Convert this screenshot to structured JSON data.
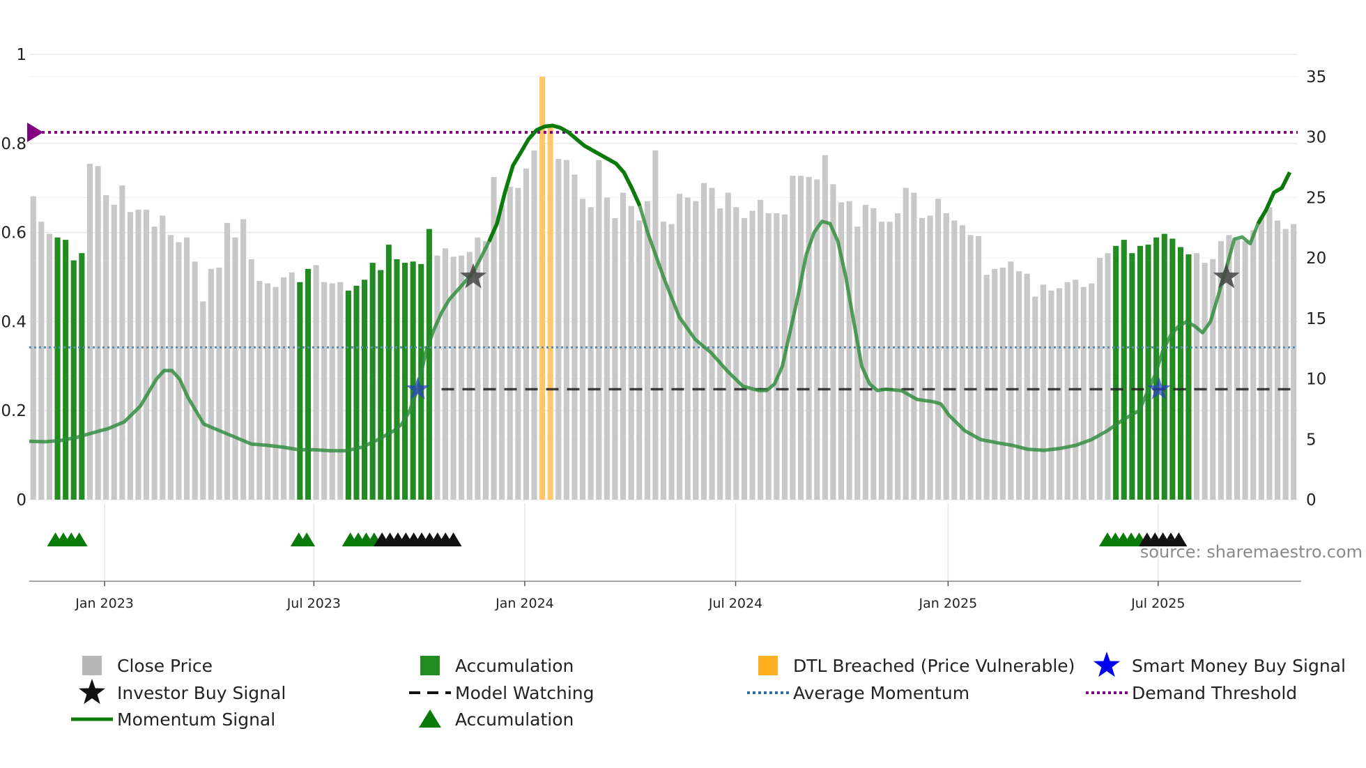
{
  "chart_data": {
    "type": "bar",
    "title": "",
    "source": "source: sharemaestro.com",
    "left_axis": {
      "range": [
        0,
        1
      ],
      "ticks": [
        {
          "v": 0,
          "label": "0"
        },
        {
          "v": 0.2,
          "label": "0.2"
        },
        {
          "v": 0.4,
          "label": "0.4"
        },
        {
          "v": 0.6,
          "label": "0.6"
        },
        {
          "v": 0.8,
          "label": "0.8"
        },
        {
          "v": 1,
          "label": "1"
        }
      ]
    },
    "right_axis": {
      "range": [
        0,
        35
      ],
      "ticks": [
        {
          "v": 0,
          "label": "0"
        },
        {
          "v": 5,
          "label": "5"
        },
        {
          "v": 10,
          "label": "10"
        },
        {
          "v": 15,
          "label": "15"
        },
        {
          "v": 20,
          "label": "20"
        },
        {
          "v": 25,
          "label": "25"
        },
        {
          "v": 30,
          "label": "30"
        },
        {
          "v": 35,
          "label": "35"
        }
      ]
    },
    "x_axis": {
      "range": [
        0,
        160
      ],
      "ticks": [
        {
          "v": 9.5,
          "label": "Jan 2023"
        },
        {
          "v": 35.9,
          "label": "Jul 2023"
        },
        {
          "v": 62.5,
          "label": "Jan 2024"
        },
        {
          "v": 89.1,
          "label": "Jul 2024"
        },
        {
          "v": 115.9,
          "label": "Jan 2025"
        },
        {
          "v": 142.4,
          "label": "Jul 2025"
        }
      ]
    },
    "close_price_weekly": [
      25.1,
      23.0,
      22.0,
      21.7,
      21.5,
      19.8,
      20.4,
      27.8,
      27.6,
      25.2,
      24.4,
      26.0,
      23.8,
      24.0,
      24.0,
      22.6,
      23.5,
      21.9,
      21.3,
      21.7,
      19.7,
      16.4,
      19.1,
      19.2,
      22.9,
      21.7,
      23.2,
      19.9,
      18.1,
      17.9,
      17.6,
      18.4,
      18.8,
      18.0,
      19.1,
      19.4,
      18.0,
      17.9,
      18.0,
      17.3,
      17.7,
      18.2,
      19.6,
      19.0,
      21.1,
      19.9,
      19.6,
      19.7,
      19.5,
      22.4,
      20.2,
      20.8,
      20.1,
      20.2,
      20.5,
      21.7,
      21.4,
      26.7,
      24.4,
      25.9,
      25.8,
      27.4,
      28.9,
      35.0,
      31.0,
      28.2,
      28.1,
      26.9,
      24.9,
      24.2,
      28.1,
      25.0,
      23.3,
      25.4,
      24.3,
      23.1,
      24.7,
      28.9,
      23.0,
      22.8,
      25.3,
      25.0,
      24.7,
      26.2,
      25.8,
      24.1,
      25.4,
      24.2,
      23.3,
      23.9,
      24.8,
      23.7,
      23.7,
      23.6,
      26.8,
      26.8,
      26.7,
      26.5,
      28.5,
      26.1,
      24.6,
      24.7,
      22.6,
      24.4,
      24.1,
      23.0,
      23.0,
      23.7,
      25.8,
      25.4,
      23.3,
      23.5,
      24.9,
      23.7,
      23.1,
      22.7,
      21.9,
      21.8,
      18.6,
      19.1,
      19.2,
      19.7,
      18.9,
      18.7,
      16.8,
      17.8,
      17.3,
      17.5,
      18.0,
      18.2,
      17.6,
      17.9,
      20.0,
      20.4,
      21.0,
      21.5,
      20.4,
      21.0,
      21.1,
      21.7,
      22.0,
      21.6,
      20.9,
      20.3,
      20.4,
      19.6,
      19.9,
      21.4,
      21.9,
      21.5,
      21.4,
      22.3,
      23.4,
      24.2,
      23.1,
      22.4,
      22.8
    ],
    "accumulation_weeks": [
      3,
      4,
      5,
      6,
      33,
      34,
      39,
      40,
      41,
      42,
      43,
      44,
      45,
      46,
      47,
      48,
      49,
      134,
      135,
      136,
      137,
      138,
      139,
      140,
      141,
      142,
      143
    ],
    "dtl_breached_weeks": [
      63,
      64
    ],
    "momentum_signal": [
      [
        0,
        0.131
      ],
      [
        2,
        0.13
      ],
      [
        4,
        0.133
      ],
      [
        6,
        0.14
      ],
      [
        8,
        0.15
      ],
      [
        10,
        0.16
      ],
      [
        12,
        0.175
      ],
      [
        14,
        0.21
      ],
      [
        16,
        0.27
      ],
      [
        17,
        0.29
      ],
      [
        18,
        0.29
      ],
      [
        19,
        0.27
      ],
      [
        20,
        0.23
      ],
      [
        22,
        0.17
      ],
      [
        24,
        0.155
      ],
      [
        26,
        0.14
      ],
      [
        28,
        0.125
      ],
      [
        30,
        0.122
      ],
      [
        32,
        0.118
      ],
      [
        34,
        0.112
      ],
      [
        36,
        0.112
      ],
      [
        38,
        0.11
      ],
      [
        40,
        0.11
      ],
      [
        42,
        0.118
      ],
      [
        44,
        0.135
      ],
      [
        46,
        0.155
      ],
      [
        47,
        0.17
      ],
      [
        48,
        0.2
      ],
      [
        49,
        0.25
      ],
      [
        50,
        0.33
      ],
      [
        51,
        0.38
      ],
      [
        52,
        0.42
      ],
      [
        53,
        0.45
      ],
      [
        54,
        0.47
      ],
      [
        56,
        0.51
      ],
      [
        58,
        0.58
      ],
      [
        59,
        0.62
      ],
      [
        60,
        0.69
      ],
      [
        61,
        0.75
      ],
      [
        62,
        0.78
      ],
      [
        63,
        0.81
      ],
      [
        64,
        0.83
      ],
      [
        65,
        0.838
      ],
      [
        66,
        0.84
      ],
      [
        67,
        0.835
      ],
      [
        68,
        0.825
      ],
      [
        70,
        0.795
      ],
      [
        72,
        0.775
      ],
      [
        74,
        0.755
      ],
      [
        75,
        0.735
      ],
      [
        76,
        0.7
      ],
      [
        77,
        0.66
      ],
      [
        78,
        0.6
      ],
      [
        80,
        0.5
      ],
      [
        82,
        0.41
      ],
      [
        84,
        0.36
      ],
      [
        86,
        0.33
      ],
      [
        88,
        0.29
      ],
      [
        90,
        0.255
      ],
      [
        92,
        0.245
      ],
      [
        93,
        0.245
      ],
      [
        94,
        0.26
      ],
      [
        95,
        0.3
      ],
      [
        96,
        0.38
      ],
      [
        97,
        0.46
      ],
      [
        98,
        0.55
      ],
      [
        99,
        0.6
      ],
      [
        100,
        0.625
      ],
      [
        101,
        0.62
      ],
      [
        102,
        0.58
      ],
      [
        103,
        0.5
      ],
      [
        104,
        0.4
      ],
      [
        105,
        0.3
      ],
      [
        106,
        0.26
      ],
      [
        107,
        0.245
      ],
      [
        108,
        0.248
      ],
      [
        110,
        0.245
      ],
      [
        112,
        0.225
      ],
      [
        114,
        0.22
      ],
      [
        115,
        0.215
      ],
      [
        116,
        0.19
      ],
      [
        118,
        0.155
      ],
      [
        120,
        0.135
      ],
      [
        122,
        0.128
      ],
      [
        124,
        0.122
      ],
      [
        126,
        0.113
      ],
      [
        128,
        0.111
      ],
      [
        130,
        0.115
      ],
      [
        132,
        0.122
      ],
      [
        134,
        0.135
      ],
      [
        136,
        0.155
      ],
      [
        138,
        0.18
      ],
      [
        140,
        0.2
      ],
      [
        141,
        0.24
      ],
      [
        142,
        0.28
      ],
      [
        143,
        0.335
      ],
      [
        144,
        0.37
      ],
      [
        145,
        0.39
      ],
      [
        146,
        0.4
      ],
      [
        147,
        0.39
      ],
      [
        148,
        0.375
      ],
      [
        149,
        0.4
      ],
      [
        150,
        0.46
      ],
      [
        151,
        0.52
      ],
      [
        152,
        0.585
      ],
      [
        153,
        0.59
      ],
      [
        154,
        0.575
      ],
      [
        155,
        0.62
      ],
      [
        156,
        0.65
      ],
      [
        157,
        0.69
      ],
      [
        158,
        0.7
      ],
      [
        159,
        0.735
      ]
    ],
    "momentum_strong_ranges": [
      [
        57,
        77
      ],
      [
        155,
        160
      ]
    ],
    "average_momentum": 0.342,
    "demand_threshold": 0.825,
    "model_watching_level": 0.248,
    "model_watching_ranges": [
      [
        52,
        159.5
      ]
    ],
    "investor_buy_signals": [
      [
        56,
        0.5
      ],
      [
        151,
        0.5
      ]
    ],
    "smart_money_buy_signals": [
      [
        49,
        0.248
      ],
      [
        142.5,
        0.248
      ]
    ],
    "accumulation_markers": [
      3.3,
      4.3,
      5.3,
      6.3,
      34,
      35,
      40.5,
      41.5,
      42.5,
      43.5
    ],
    "model_watching_markers": [
      44.5,
      45.5,
      46.5,
      47.5,
      48.5,
      49.5,
      50.5,
      51.5,
      52.5,
      53.5,
      141,
      142,
      143,
      144,
      145
    ],
    "accumulation_markers_late": [
      136,
      137,
      138,
      139,
      140
    ],
    "legend": [
      {
        "name": "Close Price",
        "key": "square",
        "color": "#b8b8b8"
      },
      {
        "name": "Accumulation",
        "key": "square",
        "color": "#228b22"
      },
      {
        "name": "DTL Breached (Price Vulnerable)",
        "key": "square",
        "color": "#ffb020"
      },
      {
        "name": "Smart Money Buy Signal",
        "key": "star",
        "color": "#0000ee"
      },
      {
        "name": "Investor Buy Signal",
        "key": "star",
        "color": "#111111"
      },
      {
        "name": "Model Watching",
        "key": "dash",
        "color": "#111111"
      },
      {
        "name": "Average Momentum",
        "key": "dot",
        "color": "#2f6fa0"
      },
      {
        "name": "Demand Threshold",
        "key": "dot",
        "color": "#800080"
      },
      {
        "name": "Momentum Signal",
        "key": "line",
        "color": "#0a7a0a"
      },
      {
        "name": "Accumulation",
        "key": "triangle",
        "color": "#0a7a0a"
      }
    ]
  }
}
